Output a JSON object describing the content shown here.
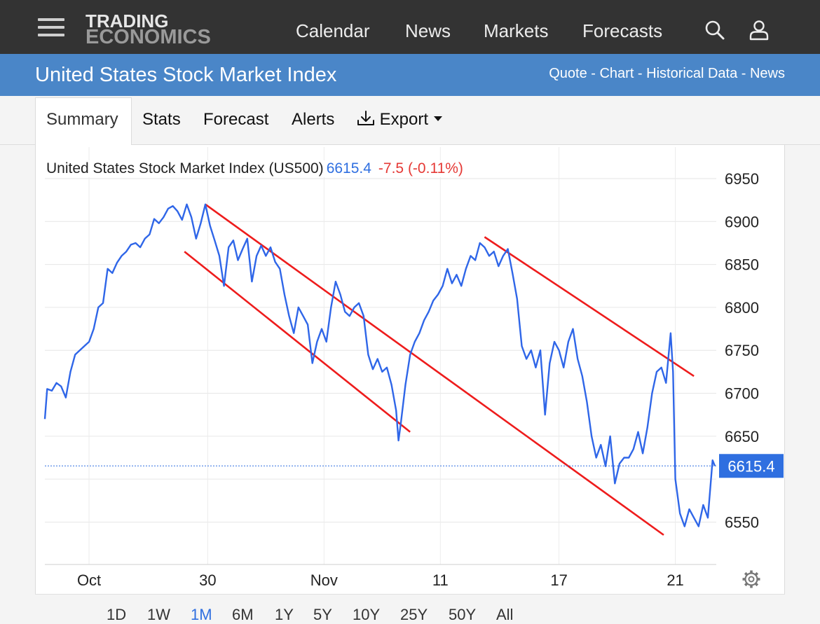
{
  "header": {
    "logo_line1": "TRADING",
    "logo_line2": "ECONOMICS",
    "nav": [
      "Calendar",
      "News",
      "Markets",
      "Forecasts"
    ],
    "icons": [
      "menu-icon",
      "search-icon",
      "user-icon"
    ]
  },
  "titlebar": {
    "title": "United States Stock Market Index",
    "links": [
      "Quote",
      "Chart",
      "Historical Data",
      "News"
    ],
    "separator": " - "
  },
  "tabs": {
    "items": [
      "Summary",
      "Stats",
      "Forecast",
      "Alerts"
    ],
    "export_label": "Export",
    "active": "Summary"
  },
  "chart_header": {
    "name": "United States Stock Market Index (US500)",
    "last": "6615.4",
    "change": "-7.5 (-0.11%)"
  },
  "price_tag": "6615.4",
  "ranges": {
    "items": [
      "1D",
      "1W",
      "1M",
      "6M",
      "1Y",
      "5Y",
      "10Y",
      "25Y",
      "50Y",
      "All"
    ],
    "active": "1M"
  },
  "colors": {
    "line": "#2f66e8",
    "trend": "#ee1c1c",
    "header_bg": "#333333",
    "title_bg": "#4a86c8",
    "negative": "#e53935",
    "positive_blue": "#2f6fe0"
  },
  "chart_data": {
    "type": "line",
    "title": "United States Stock Market Index (US500)",
    "xlabel": "",
    "ylabel": "",
    "ylim": [
      6500,
      6975
    ],
    "xlim": [
      0,
      28
    ],
    "yticks": [
      6550,
      6600,
      6650,
      6700,
      6750,
      6800,
      6850,
      6900,
      6950
    ],
    "ytick_labels": [
      "6550",
      "",
      "6650",
      "6700",
      "6750",
      "6800",
      "6850",
      "6900",
      "6950"
    ],
    "xticks": [
      {
        "x": 1.9,
        "label": "Oct"
      },
      {
        "x": 7.0,
        "label": "30"
      },
      {
        "x": 12.0,
        "label": "Nov"
      },
      {
        "x": 17.0,
        "label": "11"
      },
      {
        "x": 22.1,
        "label": "17"
      },
      {
        "x": 27.1,
        "label": "21"
      }
    ],
    "grid": true,
    "current_value": 6615.4,
    "series": [
      {
        "values": [
          [
            0.0,
            6670
          ],
          [
            0.1,
            6705
          ],
          [
            0.3,
            6703
          ],
          [
            0.5,
            6712
          ],
          [
            0.7,
            6708
          ],
          [
            0.9,
            6695
          ],
          [
            1.1,
            6725
          ],
          [
            1.3,
            6745
          ],
          [
            1.5,
            6750
          ],
          [
            1.7,
            6755
          ],
          [
            1.9,
            6760
          ],
          [
            2.1,
            6775
          ],
          [
            2.3,
            6800
          ],
          [
            2.5,
            6805
          ],
          [
            2.7,
            6845
          ],
          [
            2.9,
            6840
          ],
          [
            3.1,
            6852
          ],
          [
            3.3,
            6860
          ],
          [
            3.5,
            6865
          ],
          [
            3.7,
            6873
          ],
          [
            3.9,
            6875
          ],
          [
            4.1,
            6870
          ],
          [
            4.3,
            6880
          ],
          [
            4.5,
            6885
          ],
          [
            4.7,
            6903
          ],
          [
            4.9,
            6898
          ],
          [
            5.1,
            6905
          ],
          [
            5.3,
            6915
          ],
          [
            5.5,
            6918
          ],
          [
            5.7,
            6912
          ],
          [
            5.9,
            6902
          ],
          [
            6.1,
            6920
          ],
          [
            6.3,
            6905
          ],
          [
            6.5,
            6880
          ],
          [
            6.7,
            6898
          ],
          [
            6.9,
            6920
          ],
          [
            7.1,
            6895
          ],
          [
            7.3,
            6878
          ],
          [
            7.5,
            6860
          ],
          [
            7.7,
            6825
          ],
          [
            7.9,
            6870
          ],
          [
            8.1,
            6878
          ],
          [
            8.3,
            6855
          ],
          [
            8.5,
            6868
          ],
          [
            8.7,
            6880
          ],
          [
            8.9,
            6830
          ],
          [
            9.1,
            6860
          ],
          [
            9.3,
            6872
          ],
          [
            9.5,
            6860
          ],
          [
            9.7,
            6870
          ],
          [
            9.9,
            6853
          ],
          [
            10.1,
            6845
          ],
          [
            10.3,
            6815
          ],
          [
            10.5,
            6790
          ],
          [
            10.7,
            6770
          ],
          [
            10.9,
            6800
          ],
          [
            11.1,
            6790
          ],
          [
            11.3,
            6780
          ],
          [
            11.5,
            6735
          ],
          [
            11.7,
            6760
          ],
          [
            11.9,
            6775
          ],
          [
            12.1,
            6760
          ],
          [
            12.3,
            6800
          ],
          [
            12.5,
            6830
          ],
          [
            12.7,
            6815
          ],
          [
            12.9,
            6795
          ],
          [
            13.1,
            6790
          ],
          [
            13.3,
            6800
          ],
          [
            13.5,
            6805
          ],
          [
            13.7,
            6790
          ],
          [
            13.9,
            6745
          ],
          [
            14.1,
            6728
          ],
          [
            14.3,
            6740
          ],
          [
            14.5,
            6725
          ],
          [
            14.7,
            6730
          ],
          [
            14.9,
            6710
          ],
          [
            15.1,
            6680
          ],
          [
            15.2,
            6645
          ],
          [
            15.3,
            6665
          ],
          [
            15.5,
            6710
          ],
          [
            15.7,
            6745
          ],
          [
            15.9,
            6760
          ],
          [
            16.1,
            6770
          ],
          [
            16.3,
            6785
          ],
          [
            16.5,
            6795
          ],
          [
            16.7,
            6808
          ],
          [
            16.9,
            6815
          ],
          [
            17.1,
            6825
          ],
          [
            17.3,
            6845
          ],
          [
            17.5,
            6828
          ],
          [
            17.7,
            6838
          ],
          [
            17.9,
            6825
          ],
          [
            18.1,
            6845
          ],
          [
            18.3,
            6860
          ],
          [
            18.5,
            6855
          ],
          [
            18.7,
            6875
          ],
          [
            18.9,
            6870
          ],
          [
            19.1,
            6860
          ],
          [
            19.3,
            6865
          ],
          [
            19.5,
            6848
          ],
          [
            19.7,
            6860
          ],
          [
            19.9,
            6868
          ],
          [
            20.1,
            6840
          ],
          [
            20.3,
            6810
          ],
          [
            20.5,
            6755
          ],
          [
            20.7,
            6740
          ],
          [
            20.9,
            6750
          ],
          [
            21.1,
            6730
          ],
          [
            21.3,
            6750
          ],
          [
            21.5,
            6675
          ],
          [
            21.7,
            6735
          ],
          [
            21.9,
            6760
          ],
          [
            22.1,
            6750
          ],
          [
            22.3,
            6730
          ],
          [
            22.5,
            6760
          ],
          [
            22.7,
            6775
          ],
          [
            22.9,
            6740
          ],
          [
            23.1,
            6720
          ],
          [
            23.3,
            6690
          ],
          [
            23.5,
            6650
          ],
          [
            23.7,
            6625
          ],
          [
            23.9,
            6640
          ],
          [
            24.1,
            6615
          ],
          [
            24.3,
            6650
          ],
          [
            24.5,
            6595
          ],
          [
            24.7,
            6618
          ],
          [
            24.9,
            6625
          ],
          [
            25.1,
            6625
          ],
          [
            25.3,
            6635
          ],
          [
            25.5,
            6655
          ],
          [
            25.7,
            6630
          ],
          [
            25.9,
            6660
          ],
          [
            26.1,
            6700
          ],
          [
            26.3,
            6725
          ],
          [
            26.5,
            6730
          ],
          [
            26.7,
            6712
          ],
          [
            26.9,
            6770
          ],
          [
            27.0,
            6725
          ],
          [
            27.1,
            6600
          ],
          [
            27.3,
            6560
          ],
          [
            27.5,
            6545
          ],
          [
            27.7,
            6565
          ],
          [
            27.9,
            6555
          ],
          [
            28.1,
            6545
          ],
          [
            28.3,
            6570
          ],
          [
            28.5,
            6555
          ],
          [
            28.7,
            6622
          ],
          [
            28.8,
            6615.4
          ]
        ]
      }
    ],
    "trendlines": [
      {
        "from": [
          6.0,
          6865
        ],
        "to": [
          15.7,
          6655
        ]
      },
      {
        "from": [
          6.9,
          6920
        ],
        "to": [
          26.6,
          6535
        ]
      },
      {
        "from": [
          18.9,
          6882
        ],
        "to": [
          27.9,
          6720
        ]
      }
    ]
  }
}
